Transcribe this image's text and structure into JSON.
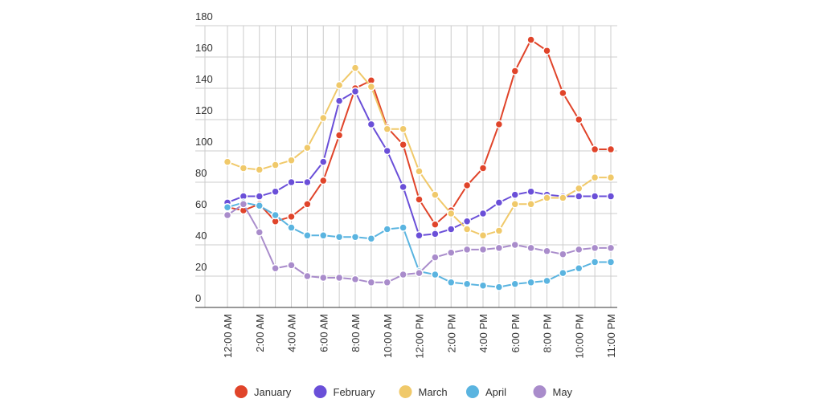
{
  "chart_data": {
    "type": "line",
    "categories": [
      "12:00 AM",
      null,
      "2:00 AM",
      null,
      "4:00 AM",
      null,
      "6:00 AM",
      null,
      "8:00 AM",
      null,
      "10:00 AM",
      null,
      "12:00 PM",
      null,
      "2:00 PM",
      null,
      "4:00 PM",
      null,
      "6:00 PM",
      null,
      "8:00 PM",
      null,
      "10:00 PM",
      null,
      "11:00 PM"
    ],
    "series": [
      {
        "name": "January",
        "color": "#e0442a",
        "values": [
          64,
          62,
          66,
          55,
          58,
          66,
          81,
          110,
          140,
          145,
          115,
          104,
          69,
          53,
          62,
          78,
          89,
          117,
          151,
          171,
          164,
          137,
          120,
          101,
          101
        ]
      },
      {
        "name": "February",
        "color": "#6a4fd8",
        "values": [
          67,
          71,
          71,
          74,
          80,
          80,
          93,
          132,
          138,
          117,
          100,
          77,
          46,
          47,
          50,
          55,
          60,
          67,
          72,
          74,
          72,
          71,
          71,
          71,
          71
        ]
      },
      {
        "name": "March",
        "color": "#f0c96a",
        "values": [
          93,
          89,
          88,
          91,
          94,
          102,
          121,
          142,
          153,
          141,
          114,
          114,
          87,
          72,
          60,
          50,
          46,
          49,
          66,
          66,
          70,
          70,
          76,
          83,
          83
        ]
      },
      {
        "name": "April",
        "color": "#5ab4e0",
        "values": [
          64,
          67,
          65,
          59,
          51,
          46,
          46,
          45,
          45,
          44,
          50,
          51,
          23,
          21,
          16,
          15,
          14,
          13,
          15,
          16,
          17,
          22,
          25,
          29,
          29
        ]
      },
      {
        "name": "May",
        "color": "#a98ccb",
        "values": [
          59,
          66,
          48,
          25,
          27,
          20,
          19,
          19,
          18,
          16,
          16,
          21,
          22,
          32,
          35,
          37,
          37,
          38,
          40,
          38,
          36,
          34,
          37,
          38,
          38
        ]
      }
    ],
    "ylim": [
      0,
      180
    ],
    "yticks": [
      0,
      20,
      40,
      60,
      80,
      100,
      120,
      140,
      160,
      180
    ],
    "grid": true,
    "legend": "bottom"
  }
}
